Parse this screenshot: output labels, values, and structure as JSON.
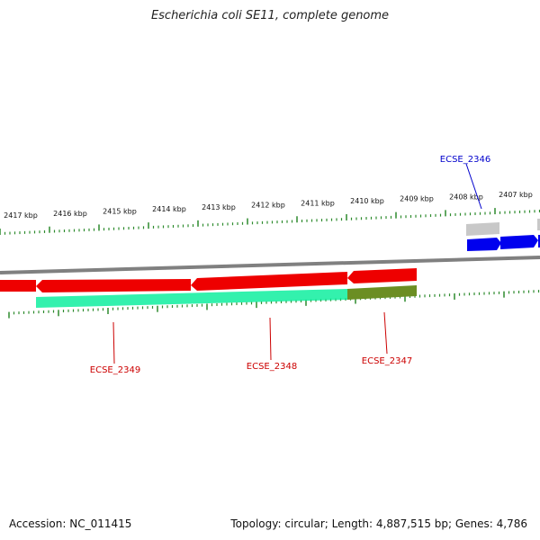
{
  "title": "Escherichia coli SE11, complete genome",
  "footer": {
    "accession": "Accession: NC_011415",
    "summary": "Topology: circular; Length: 4,887,515 bp; Genes: 4,786"
  },
  "scale_labels": [
    "2417 kbp",
    "2416 kbp",
    "2415 kbp",
    "2414 kbp",
    "2413 kbp",
    "2412 kbp",
    "2411 kbp",
    "2410 kbp",
    "2409 kbp",
    "2408 kbp",
    "2407 kbp"
  ],
  "gene_labels": [
    {
      "id": "ECSE_2346",
      "color": "#0000cc"
    },
    {
      "id": "ECSE_2347",
      "color": "#cc0000"
    },
    {
      "id": "ECSE_2348",
      "color": "#cc0000"
    },
    {
      "id": "ECSE_2349",
      "color": "#cc0000"
    }
  ],
  "colors": {
    "backbone": "#808080",
    "forward_cds": "#0000ee",
    "reverse_cds": "#ee0000",
    "feature_green": "#00ee88",
    "feature_olive": "#6b8e23",
    "feature_grey": "#c8c8c8",
    "tick": "#2e8b2e"
  }
}
